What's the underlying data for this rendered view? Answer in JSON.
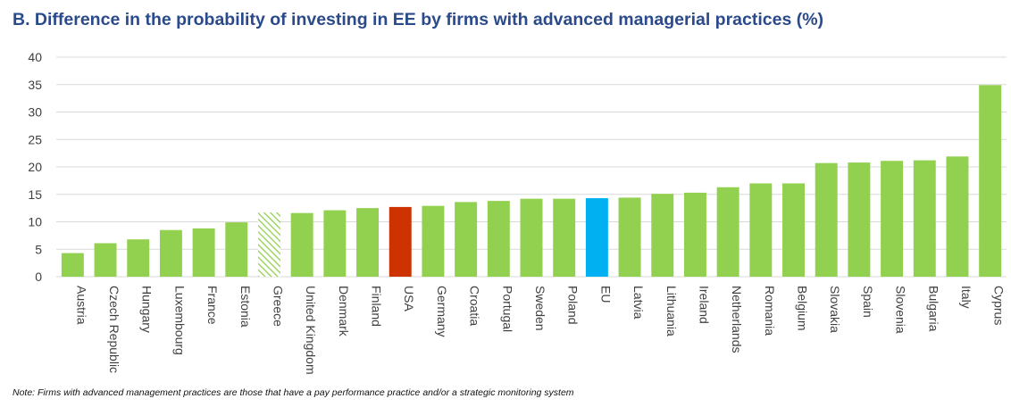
{
  "colors": {
    "title": "#2a4a8c",
    "default_bar": "#92d050",
    "usa_bar": "#cc3300",
    "eu_bar": "#00b0f0",
    "hatched_bar": "#92d050",
    "gridline": "#d9d9d9",
    "axis_text": "#404040"
  },
  "chart_data": {
    "type": "bar",
    "title": "B. Difference in the probability of investing in EE by firms with advanced managerial practices (%)",
    "xlabel": "",
    "ylabel": "",
    "ylim": [
      0,
      40
    ],
    "yticks": [
      "0",
      "5",
      "10",
      "15",
      "20",
      "25",
      "30",
      "35",
      "40"
    ],
    "grid": true,
    "categories": [
      "Austria",
      "Czech Republic",
      "Hungary",
      "Luxembourg",
      "France",
      "Estonia",
      "Greece",
      "United Kingdom",
      "Denmark",
      "Finland",
      "USA",
      "Germany",
      "Croatia",
      "Portugal",
      "Sweden",
      "Poland",
      "EU",
      "Latvia",
      "Lithuania",
      "Ireland",
      "Netherlands",
      "Romania",
      "Belgium",
      "Slovakia",
      "Spain",
      "Slovenia",
      "Bulgaria",
      "Italy",
      "Cyprus"
    ],
    "values": [
      4.3,
      6.1,
      6.8,
      8.5,
      8.8,
      9.9,
      11.7,
      11.6,
      12.1,
      12.5,
      12.7,
      12.9,
      13.6,
      13.8,
      14.2,
      14.2,
      14.3,
      14.4,
      15.1,
      15.3,
      16.3,
      17.0,
      17.0,
      20.7,
      20.8,
      21.1,
      21.2,
      21.9,
      34.9
    ],
    "highlights": {
      "USA": "usa",
      "EU": "eu",
      "Greece": "hatched"
    }
  },
  "note": "Note: Firms with advanced management practices are those that have a pay performance practice and/or a strategic monitoring system"
}
